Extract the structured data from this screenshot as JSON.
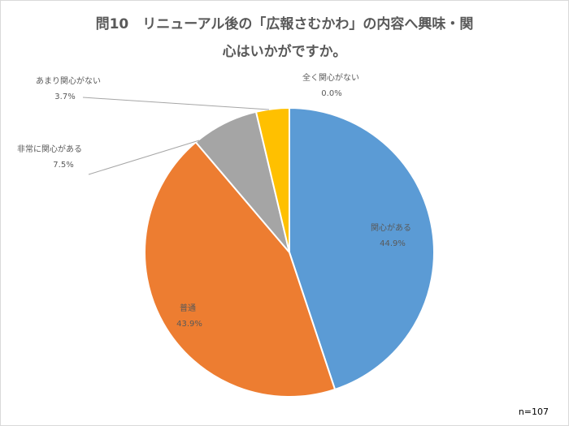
{
  "chart_data": {
    "type": "pie",
    "title_lines": [
      "問10　リニューアル後の「広報さむかわ」の内容へ興味・関",
      "心はいかがですか。"
    ],
    "slices": [
      {
        "name": "関心がある",
        "value": 44.9,
        "label": "44.9%",
        "color": "#5b9bd5"
      },
      {
        "name": "普通",
        "value": 43.9,
        "label": "43.9%",
        "color": "#ed7d31"
      },
      {
        "name": "非常に関心がある",
        "value": 7.5,
        "label": "7.5%",
        "color": "#a5a5a5"
      },
      {
        "name": "あまり関心がない",
        "value": 3.7,
        "label": "3.7%",
        "color": "#ffc000"
      },
      {
        "name": "全く関心がない",
        "value": 0.0,
        "label": "0.0%",
        "color": "#4472c4"
      }
    ],
    "start": "12 o'clock",
    "direction": "clockwise",
    "legend": "none",
    "note": "n=107"
  }
}
